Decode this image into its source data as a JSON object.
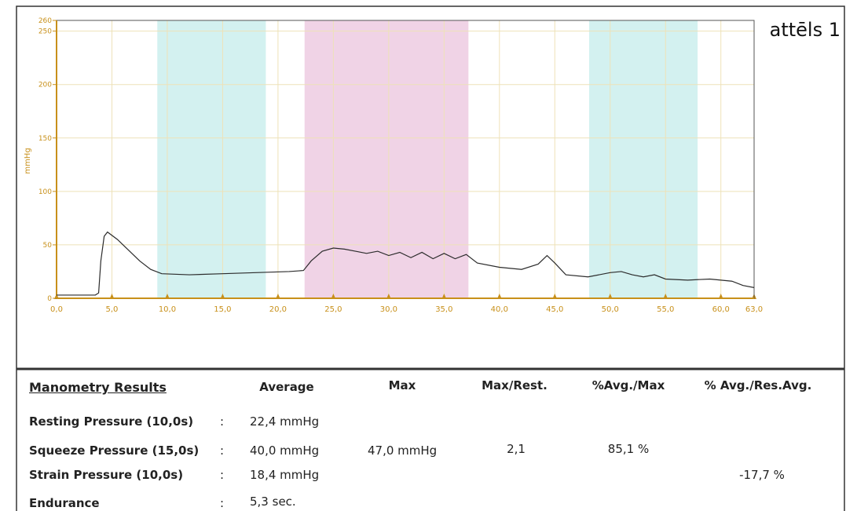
{
  "chart_data": {
    "type": "line",
    "annotation": "attēls 1",
    "ylabel": "mmHg",
    "x": [
      0,
      2,
      3.5,
      3.8,
      4.0,
      4.3,
      4.6,
      5.5,
      6.5,
      7.5,
      8.5,
      9.5,
      12,
      15,
      18,
      21,
      22.3,
      23,
      24,
      25,
      26,
      27,
      28,
      29,
      30,
      31,
      32,
      33,
      34,
      35,
      36,
      37,
      38,
      40,
      42,
      43.5,
      44.3,
      45,
      46,
      48,
      50,
      51,
      52,
      53,
      54,
      55,
      57,
      59,
      61,
      62,
      63
    ],
    "series": [
      {
        "color": "#2b2b2b",
        "values": [
          3,
          3,
          3,
          5,
          35,
          58,
          62,
          55,
          45,
          35,
          27,
          23,
          22,
          23,
          24,
          25,
          26,
          35,
          44,
          47,
          46,
          44,
          42,
          44,
          40,
          43,
          38,
          43,
          37,
          42,
          37,
          41,
          33,
          29,
          27,
          32,
          40,
          33,
          22,
          20,
          24,
          25,
          22,
          20,
          22,
          18,
          17,
          18,
          16,
          12,
          10
        ]
      }
    ],
    "bands": [
      {
        "start": 9.1,
        "end": 18.9,
        "color": "#d3f1f0"
      },
      {
        "start": 22.4,
        "end": 37.2,
        "color": "#f0d3e6"
      },
      {
        "start": 48.1,
        "end": 57.9,
        "color": "#d3f1f0"
      }
    ],
    "xlim": [
      0,
      63
    ],
    "ylim": [
      0,
      260
    ],
    "xticks": [
      {
        "value": 0,
        "label": "0,0"
      },
      {
        "value": 5,
        "label": "5,0"
      },
      {
        "value": 10,
        "label": "10,0"
      },
      {
        "value": 15,
        "label": "15,0"
      },
      {
        "value": 20,
        "label": "20,0"
      },
      {
        "value": 25,
        "label": "25,0"
      },
      {
        "value": 30,
        "label": "30,0"
      },
      {
        "value": 35,
        "label": "35,0"
      },
      {
        "value": 40,
        "label": "40,0"
      },
      {
        "value": 45,
        "label": "45,0"
      },
      {
        "value": 50,
        "label": "50,0"
      },
      {
        "value": 55,
        "label": "55,0"
      },
      {
        "value": 60,
        "label": "60,0"
      },
      {
        "value": 63,
        "label": "63,0"
      }
    ],
    "yticks": [
      0,
      50,
      100,
      150,
      200,
      250,
      260
    ],
    "grid": true,
    "axis_color": "#c8901a"
  },
  "table": {
    "headers": [
      "Manometry Results",
      "Average",
      "Max",
      "Max/Rest.",
      "%Avg./Max",
      "% Avg./Res.Avg."
    ],
    "rows": [
      {
        "label": "Resting Pressure (10,0s)",
        "separator": ":",
        "average": "22,4 mmHg"
      },
      {
        "label": "Squeeze Pressure (15,0s)",
        "separator": ":",
        "average": "40,0 mmHg",
        "max": "47,0 mmHg",
        "max_rest": "2,1",
        "avg_max": "85,1 %"
      },
      {
        "label": "Strain Pressure (10,0s)",
        "separator": ":",
        "average": "18,4 mmHg",
        "avg_res": "-17,7 %"
      },
      {
        "label": "Endurance",
        "separator": ":",
        "average": "5,3 sec."
      }
    ]
  }
}
